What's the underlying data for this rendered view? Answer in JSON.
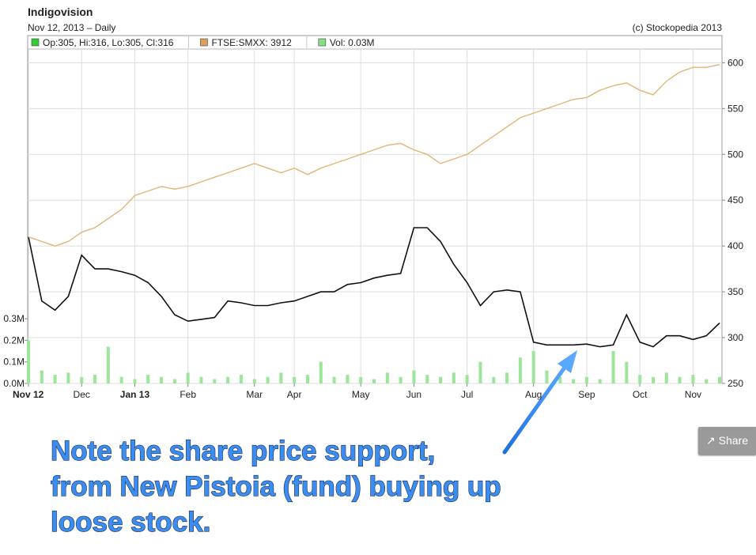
{
  "chart_data": {
    "type": "line",
    "title": "Indigovision",
    "subtitle": "Nov 12, 2013 – Daily",
    "source": "(c) Stockopedia 2013",
    "categories": [
      "Nov 12",
      null,
      null,
      null,
      "Dec",
      null,
      null,
      null,
      "Jan 13",
      null,
      null,
      null,
      "Feb",
      null,
      null,
      null,
      null,
      "Mar",
      null,
      null,
      "Apr",
      null,
      null,
      null,
      null,
      "May",
      null,
      null,
      null,
      "Jun",
      null,
      null,
      null,
      "Jul",
      null,
      null,
      null,
      null,
      "Aug",
      null,
      null,
      null,
      "Sep",
      null,
      null,
      null,
      "Oct",
      null,
      null,
      null,
      "Nov",
      null,
      null
    ],
    "series": [
      {
        "name": "Op:305, Hi:316, Lo:305, Cl:316",
        "color": "#111111",
        "swatch": "#33cc33",
        "values": [
          410,
          340,
          330,
          345,
          390,
          375,
          375,
          372,
          368,
          360,
          345,
          325,
          318,
          320,
          322,
          340,
          338,
          335,
          335,
          338,
          340,
          345,
          350,
          350,
          358,
          360,
          365,
          368,
          370,
          420,
          420,
          405,
          380,
          360,
          335,
          350,
          352,
          350,
          295,
          292,
          292,
          292,
          293,
          290,
          292,
          325,
          295,
          290,
          302,
          302,
          298,
          302,
          316
        ]
      },
      {
        "name": "FTSE:SMXX: 3912",
        "color": "#e2b577",
        "swatch": "#d9a05b",
        "values": [
          410,
          405,
          400,
          405,
          415,
          420,
          430,
          440,
          455,
          460,
          465,
          462,
          465,
          470,
          475,
          480,
          485,
          490,
          485,
          480,
          485,
          478,
          485,
          490,
          495,
          500,
          505,
          510,
          512,
          505,
          500,
          490,
          495,
          500,
          510,
          520,
          530,
          540,
          545,
          550,
          555,
          560,
          562,
          570,
          575,
          578,
          570,
          565,
          580,
          590,
          595,
          595,
          598
        ]
      },
      {
        "name": "Vol: 0.03M",
        "type": "bar",
        "axis": "y2",
        "color": "#9be69b",
        "swatch": "#88dd88",
        "values": [
          0.2,
          0.06,
          0.04,
          0.05,
          0.03,
          0.04,
          0.17,
          0.03,
          0.02,
          0.04,
          0.03,
          0.02,
          0.05,
          0.03,
          0.02,
          0.03,
          0.04,
          0.02,
          0.03,
          0.05,
          0.03,
          0.04,
          0.1,
          0.03,
          0.04,
          0.03,
          0.02,
          0.05,
          0.03,
          0.06,
          0.04,
          0.03,
          0.05,
          0.04,
          0.1,
          0.03,
          0.05,
          0.12,
          0.15,
          0.06,
          0.03,
          0.02,
          0.03,
          0.02,
          0.15,
          0.1,
          0.04,
          0.03,
          0.05,
          0.03,
          0.04,
          0.02,
          0.03
        ]
      }
    ],
    "ylim": [
      250,
      615
    ],
    "yticks": [
      250,
      300,
      350,
      400,
      450,
      500,
      550,
      600
    ],
    "y2lim": [
      0,
      1.55
    ],
    "y2ticks": [
      {
        "value": 0,
        "label": "0.0M"
      },
      {
        "value": 0.1,
        "label": "0.1M"
      },
      {
        "value": 0.2,
        "label": "0.2M"
      },
      {
        "value": 0.3,
        "label": "0.3M"
      }
    ],
    "grid": true
  },
  "annotation": {
    "lines": [
      "Note the share price support,",
      "from New Pistoia (fund) buying up",
      "loose stock."
    ]
  },
  "share_button": "Share"
}
